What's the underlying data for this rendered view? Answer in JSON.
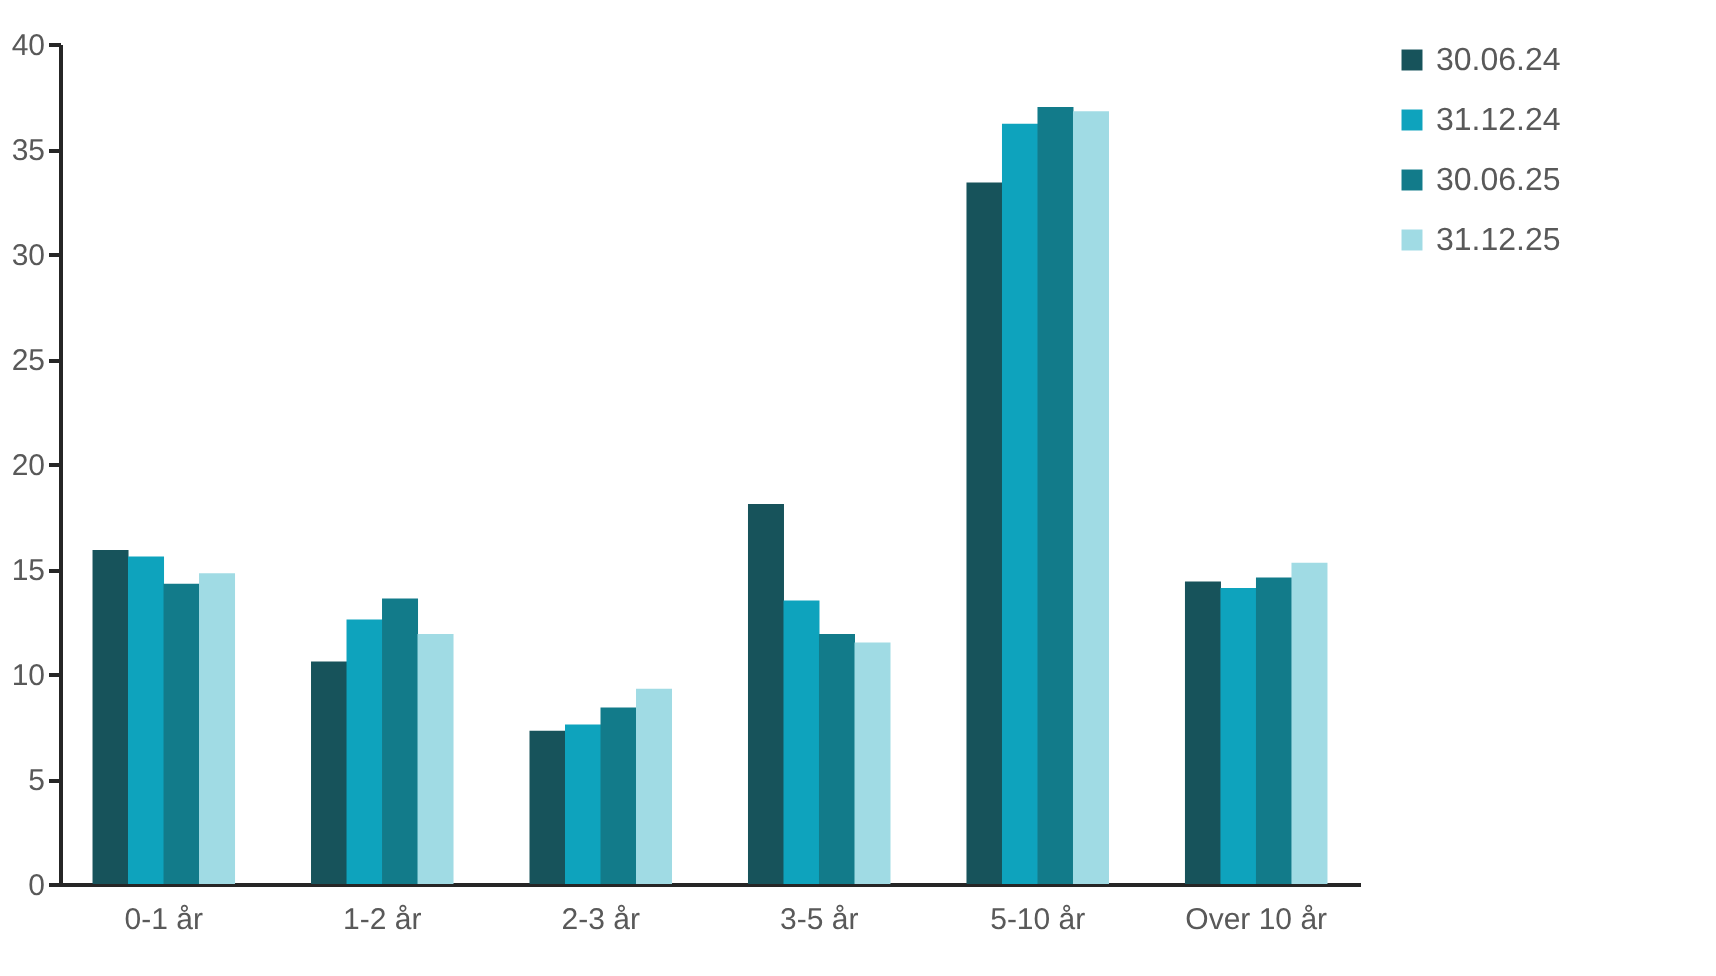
{
  "chart_data": {
    "type": "bar",
    "categories": [
      "0-1 år",
      "1-2 år",
      "2-3 år",
      "3-5 år",
      "5-10 år",
      "Over 10 år"
    ],
    "series": [
      {
        "name": "30.06.24",
        "color": "#17535b",
        "values": [
          15.9,
          10.6,
          7.3,
          18.1,
          33.4,
          14.4
        ]
      },
      {
        "name": "31.12.24",
        "color": "#0ea3bd",
        "values": [
          15.6,
          12.6,
          7.6,
          13.5,
          36.2,
          14.1
        ]
      },
      {
        "name": "30.06.25",
        "color": "#127b8a",
        "values": [
          14.3,
          13.6,
          8.4,
          11.9,
          37.0,
          14.6
        ]
      },
      {
        "name": "31.12.25",
        "color": "#a0dbe4",
        "values": [
          14.8,
          11.9,
          9.3,
          11.5,
          36.8,
          15.3
        ]
      }
    ],
    "ylim": [
      0,
      40
    ],
    "yticks": [
      0,
      5,
      10,
      15,
      20,
      25,
      30,
      35,
      40
    ],
    "grid": false,
    "legend": "right"
  }
}
